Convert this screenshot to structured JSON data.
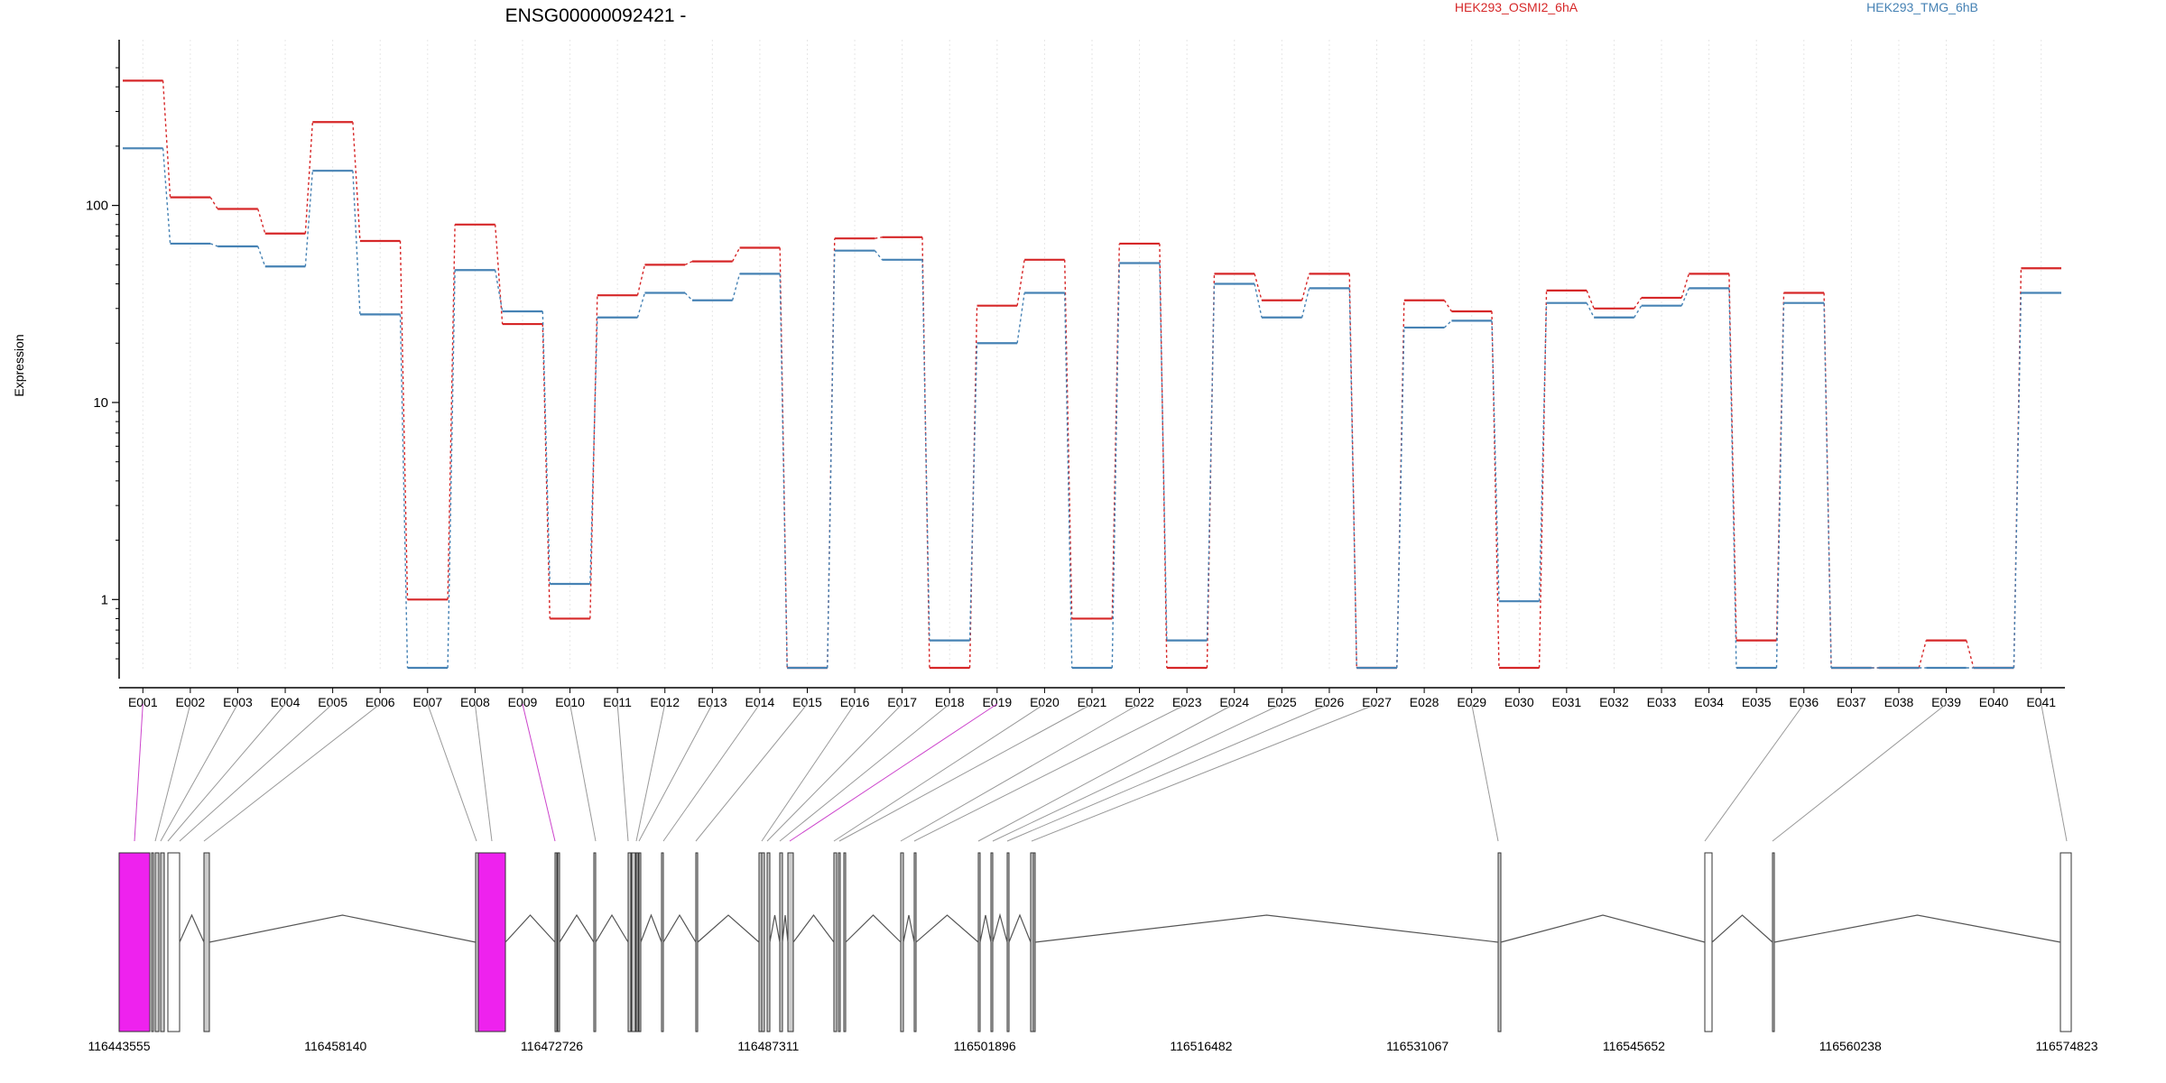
{
  "chart_data": {
    "type": "line",
    "title": "ENSG00000092421 -",
    "ylabel": "Expression",
    "xlabel": "",
    "yscale": "log",
    "ylim": [
      0.45,
      550
    ],
    "y_ticks": [
      1,
      10,
      100
    ],
    "legend_placement": "top-right",
    "grid": "vertical dotted",
    "categories": [
      "E001",
      "E002",
      "E003",
      "E004",
      "E005",
      "E006",
      "E007",
      "E008",
      "E009",
      "E010",
      "E011",
      "E012",
      "E013",
      "E014",
      "E015",
      "E016",
      "E017",
      "E018",
      "E019",
      "E020",
      "E021",
      "E022",
      "E023",
      "E024",
      "E025",
      "E026",
      "E027",
      "E028",
      "E029",
      "E030",
      "E031",
      "E032",
      "E033",
      "E034",
      "E035",
      "E036",
      "E037",
      "E038",
      "E039",
      "E040",
      "E041"
    ],
    "series": [
      {
        "name": "HEK293_OSMI2_6hA",
        "color": "#d62728",
        "values": [
          430,
          110,
          96,
          72,
          265,
          66,
          1.0,
          80,
          25,
          0.8,
          35,
          50,
          52,
          61,
          0.45,
          68,
          69,
          0.45,
          31,
          53,
          0.8,
          64,
          0.45,
          45,
          33,
          45,
          0.45,
          33,
          29,
          0.45,
          37,
          30,
          34,
          45,
          0.62,
          36,
          0.45,
          0.45,
          0.62,
          0.45,
          48
        ]
      },
      {
        "name": "HEK293_TMG_6hB",
        "color": "#4682b4",
        "values": [
          195,
          64,
          62,
          49,
          150,
          28,
          0.45,
          47,
          29,
          1.2,
          27,
          36,
          33,
          45,
          0.45,
          59,
          53,
          0.62,
          20,
          36,
          0.45,
          51,
          0.62,
          40,
          27,
          38,
          0.45,
          24,
          26,
          0.98,
          32,
          27,
          31,
          38,
          0.45,
          32,
          0.45,
          0.45,
          0.45,
          0.45,
          36
        ]
      }
    ],
    "genomic_axis": {
      "ticks": [
        "116443555",
        "116458140",
        "116472726",
        "116487311",
        "116501896",
        "116516482",
        "116531067",
        "116545652",
        "116560238",
        "116574823"
      ],
      "start": 116443555,
      "end": 116574823
    },
    "exon_highlight_color": "#ee22ee",
    "exon_fill_color": "#cccccc"
  }
}
